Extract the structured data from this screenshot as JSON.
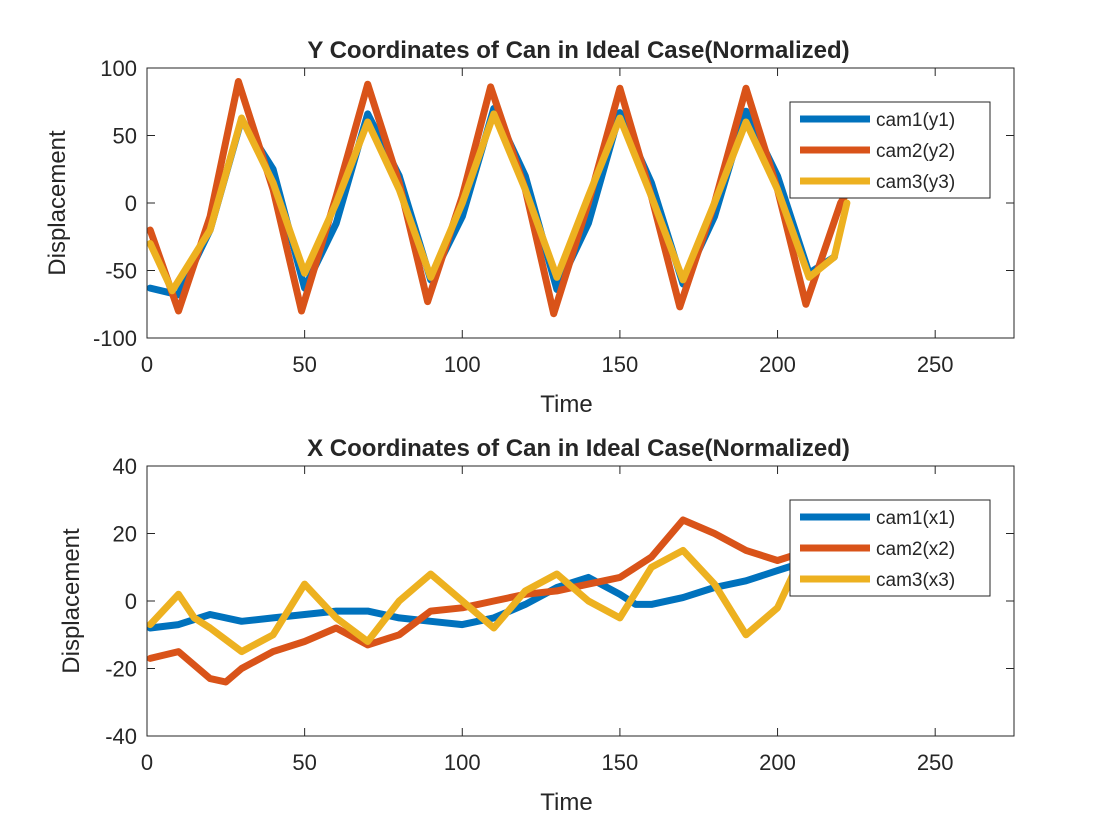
{
  "chart_data": [
    {
      "type": "line",
      "title": "Y Coordinates of Can in Ideal Case(Normalized)",
      "xlabel": "Time",
      "ylabel": "Displacement",
      "xlim": [
        0,
        275
      ],
      "ylim": [
        -100,
        100
      ],
      "xticks": [
        0,
        50,
        100,
        150,
        200,
        250
      ],
      "yticks": [
        -100,
        -50,
        0,
        50,
        100
      ],
      "xtick_labels": [
        "0",
        "50",
        "100",
        "150",
        "200",
        "250"
      ],
      "ytick_labels": [
        "-100",
        "-50",
        "0",
        "50",
        "100"
      ],
      "grid": false,
      "legend_position": "top-right",
      "series": [
        {
          "name": "cam1(y1)",
          "color": "#0072BD",
          "x": [
            1,
            10,
            20,
            30,
            40,
            50,
            60,
            70,
            80,
            90,
            100,
            110,
            120,
            130,
            140,
            150,
            160,
            170,
            180,
            190,
            200,
            210,
            218
          ],
          "y": [
            -63,
            -68,
            -20,
            62,
            25,
            -63,
            -15,
            66,
            20,
            -57,
            -10,
            70,
            20,
            -64,
            -15,
            67,
            15,
            -60,
            -10,
            68,
            20,
            -52,
            -40
          ]
        },
        {
          "name": "cam2(y2)",
          "color": "#D95319",
          "x": [
            1,
            10,
            20,
            29,
            40,
            49,
            60,
            70,
            80,
            89,
            100,
            109,
            120,
            129,
            140,
            150,
            160,
            169,
            180,
            190,
            200,
            209,
            220,
            224
          ],
          "y": [
            -20,
            -80,
            -10,
            90,
            10,
            -80,
            5,
            88,
            15,
            -73,
            5,
            86,
            10,
            -82,
            0,
            85,
            5,
            -77,
            0,
            85,
            10,
            -75,
            0,
            15
          ]
        },
        {
          "name": "cam3(y3)",
          "color": "#EDB120",
          "x": [
            1,
            8,
            20,
            30,
            40,
            50,
            60,
            70,
            80,
            90,
            100,
            110,
            120,
            130,
            140,
            150,
            160,
            170,
            180,
            190,
            200,
            210,
            218,
            222
          ],
          "y": [
            -30,
            -65,
            -20,
            63,
            15,
            -52,
            0,
            60,
            10,
            -55,
            0,
            66,
            10,
            -55,
            5,
            63,
            5,
            -57,
            0,
            60,
            10,
            -55,
            -40,
            0
          ]
        }
      ]
    },
    {
      "type": "line",
      "title": "X Coordinates of Can in Ideal Case(Normalized)",
      "xlabel": "Time",
      "ylabel": "Displacement",
      "xlim": [
        0,
        275
      ],
      "ylim": [
        -40,
        40
      ],
      "xticks": [
        0,
        50,
        100,
        150,
        200,
        250
      ],
      "yticks": [
        -40,
        -20,
        0,
        20,
        40
      ],
      "xtick_labels": [
        "0",
        "50",
        "100",
        "150",
        "200",
        "250"
      ],
      "ytick_labels": [
        "-40",
        "-20",
        "0",
        "20",
        "40"
      ],
      "grid": false,
      "legend_position": "top-right",
      "series": [
        {
          "name": "cam1(x1)",
          "color": "#0072BD",
          "x": [
            1,
            10,
            20,
            30,
            40,
            50,
            60,
            70,
            80,
            90,
            100,
            110,
            120,
            130,
            140,
            150,
            155,
            160,
            170,
            180,
            190,
            200,
            210
          ],
          "y": [
            -8,
            -7,
            -4,
            -6,
            -5,
            -4,
            -3,
            -3,
            -5,
            -6,
            -7,
            -5,
            -1,
            4,
            7,
            2,
            -1,
            -1,
            1,
            4,
            6,
            9,
            12
          ]
        },
        {
          "name": "cam2(x2)",
          "color": "#D95319",
          "x": [
            1,
            10,
            20,
            25,
            30,
            40,
            50,
            60,
            70,
            80,
            90,
            100,
            110,
            120,
            130,
            140,
            150,
            160,
            170,
            180,
            190,
            200,
            210
          ],
          "y": [
            -17,
            -15,
            -23,
            -24,
            -20,
            -15,
            -12,
            -8,
            -13,
            -10,
            -3,
            -2,
            0,
            2,
            3,
            5,
            7,
            13,
            24,
            20,
            15,
            12,
            15
          ]
        },
        {
          "name": "cam3(x3)",
          "color": "#EDB120",
          "x": [
            1,
            5,
            10,
            15,
            20,
            30,
            40,
            50,
            60,
            70,
            80,
            90,
            100,
            110,
            120,
            130,
            140,
            150,
            160,
            170,
            180,
            190,
            200,
            205
          ],
          "y": [
            -7,
            -3,
            2,
            -5,
            -8,
            -15,
            -10,
            5,
            -5,
            -12,
            0,
            8,
            0,
            -8,
            3,
            8,
            0,
            -5,
            10,
            15,
            5,
            -10,
            -2,
            8
          ]
        }
      ]
    }
  ]
}
